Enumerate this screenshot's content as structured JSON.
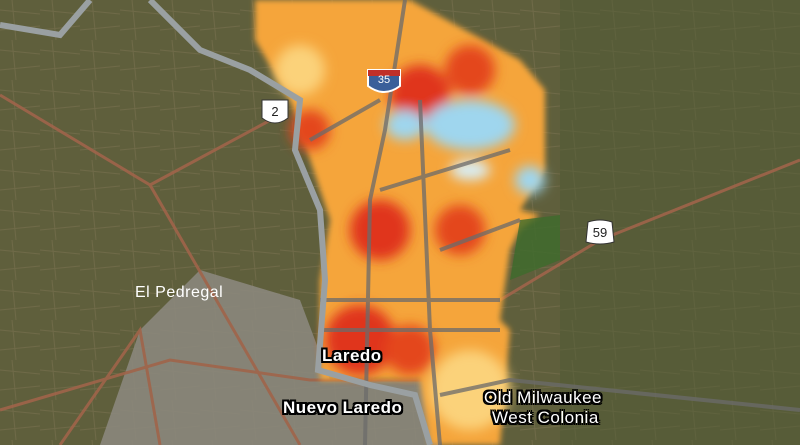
{
  "map": {
    "places": [
      {
        "name": "El Pedregal"
      },
      {
        "name": "Laredo"
      },
      {
        "name": "Nuevo Laredo"
      },
      {
        "name": "Old Milwaukee"
      },
      {
        "name": "West Colonia"
      }
    ],
    "shields": [
      {
        "type": "interstate",
        "number": "35",
        "icon": "interstate-shield-icon"
      },
      {
        "type": "mexican-federal",
        "number": "2",
        "icon": "route-shield-icon"
      },
      {
        "type": "us-highway",
        "number": "59",
        "icon": "us-highway-shield-icon"
      }
    ],
    "colors": {
      "hot": "#e0361a",
      "warm": "#f29a2e",
      "mild": "#fbd27a",
      "cool": "#9fd6ee",
      "terrain": "#5f5f3c",
      "river": "#9aa0a2",
      "road": "#a0644a"
    }
  }
}
